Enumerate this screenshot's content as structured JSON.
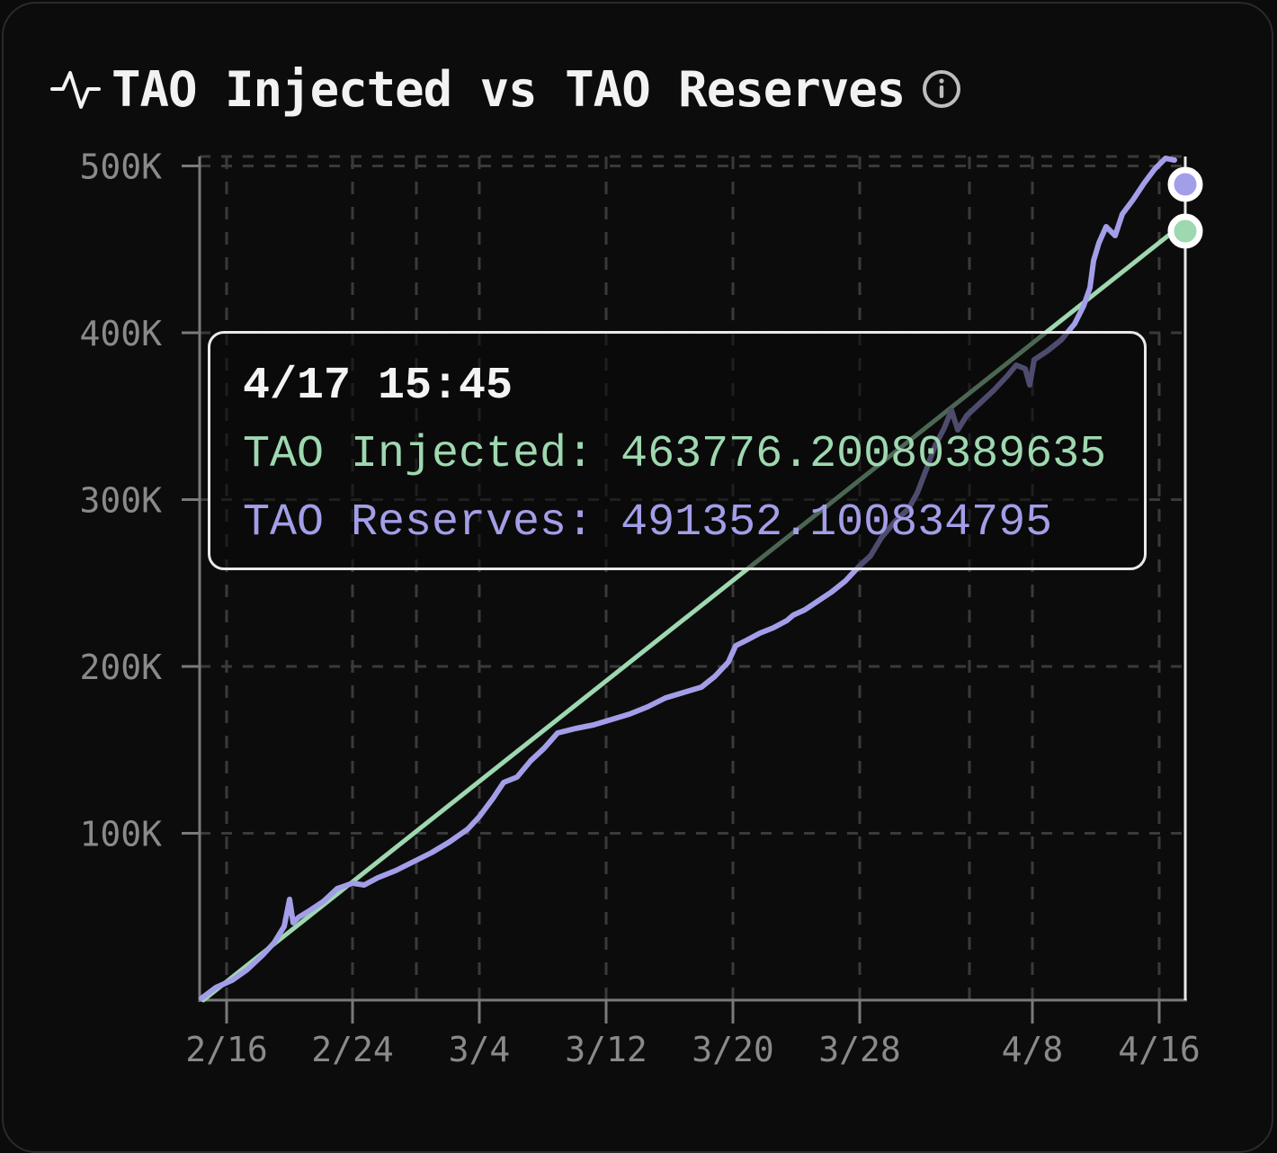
{
  "card": {
    "title": "TAO Injected vs TAO Reserves",
    "title_icon": "pulse-icon",
    "info_icon": "info-icon"
  },
  "tooltip": {
    "date": "4/17 15:45",
    "rows": [
      {
        "label": "TAO Injected",
        "value": "463776.20080389635",
        "color": "#9ed8b0"
      },
      {
        "label": "TAO Reserves",
        "value": "491352.100834795",
        "color": "#a39ee8"
      }
    ]
  },
  "colors": {
    "injected": "#9ed8b0",
    "reserves": "#a39ee8",
    "grid": "#3a3a3a",
    "axis": "#8a8a8a",
    "background": "#0c0c0c"
  },
  "chart_data": {
    "type": "line",
    "title": "TAO Injected vs TAO Reserves",
    "xlabel": "",
    "ylabel": "",
    "x_tick_labels": [
      "2/16",
      "2/24",
      "3/4",
      "3/12",
      "3/20",
      "3/28",
      "4/8",
      "4/16"
    ],
    "y_tick_labels": [
      "100K",
      "200K",
      "300K",
      "400K",
      "500K"
    ],
    "y_ticks": [
      100000,
      200000,
      300000,
      400000,
      500000
    ],
    "ylim": [
      0,
      500000
    ],
    "xlim": [
      "2/14",
      "4/17"
    ],
    "grid": true,
    "legend": "tooltip",
    "x": [
      "2/14",
      "2/16",
      "2/18",
      "2/20",
      "2/22",
      "2/24",
      "2/26",
      "2/28",
      "3/2",
      "3/4",
      "3/6",
      "3/8",
      "3/10",
      "3/12",
      "3/14",
      "3/16",
      "3/18",
      "3/20",
      "3/22",
      "3/24",
      "3/26",
      "3/28",
      "3/30",
      "4/1",
      "4/3",
      "4/5",
      "4/7",
      "4/9",
      "4/11",
      "4/13",
      "4/15",
      "4/17"
    ],
    "series": [
      {
        "name": "TAO Injected",
        "color": "#9ed8b0",
        "values": [
          0,
          14400,
          28800,
          43200,
          57600,
          72000,
          86400,
          100800,
          115200,
          129600,
          144000,
          158400,
          172800,
          187200,
          201600,
          216000,
          230400,
          244800,
          259200,
          273600,
          288000,
          302400,
          316800,
          331200,
          345600,
          360000,
          374400,
          388800,
          403200,
          417600,
          432000,
          463776
        ]
      },
      {
        "name": "TAO Reserves",
        "color": "#a39ee8",
        "values": [
          0,
          12000,
          30000,
          58000,
          62000,
          72000,
          76000,
          85000,
          98000,
          115000,
          135000,
          155000,
          164000,
          168000,
          175000,
          185000,
          192000,
          215000,
          225000,
          235000,
          250000,
          265000,
          295000,
          345000,
          360000,
          378000,
          385000,
          400000,
          460000,
          480000,
          505000,
          491352
        ]
      }
    ],
    "hover": {
      "x": "4/17 15:45",
      "TAO Injected": 463776.20080389635,
      "TAO Reserves": 491352.100834795
    }
  }
}
